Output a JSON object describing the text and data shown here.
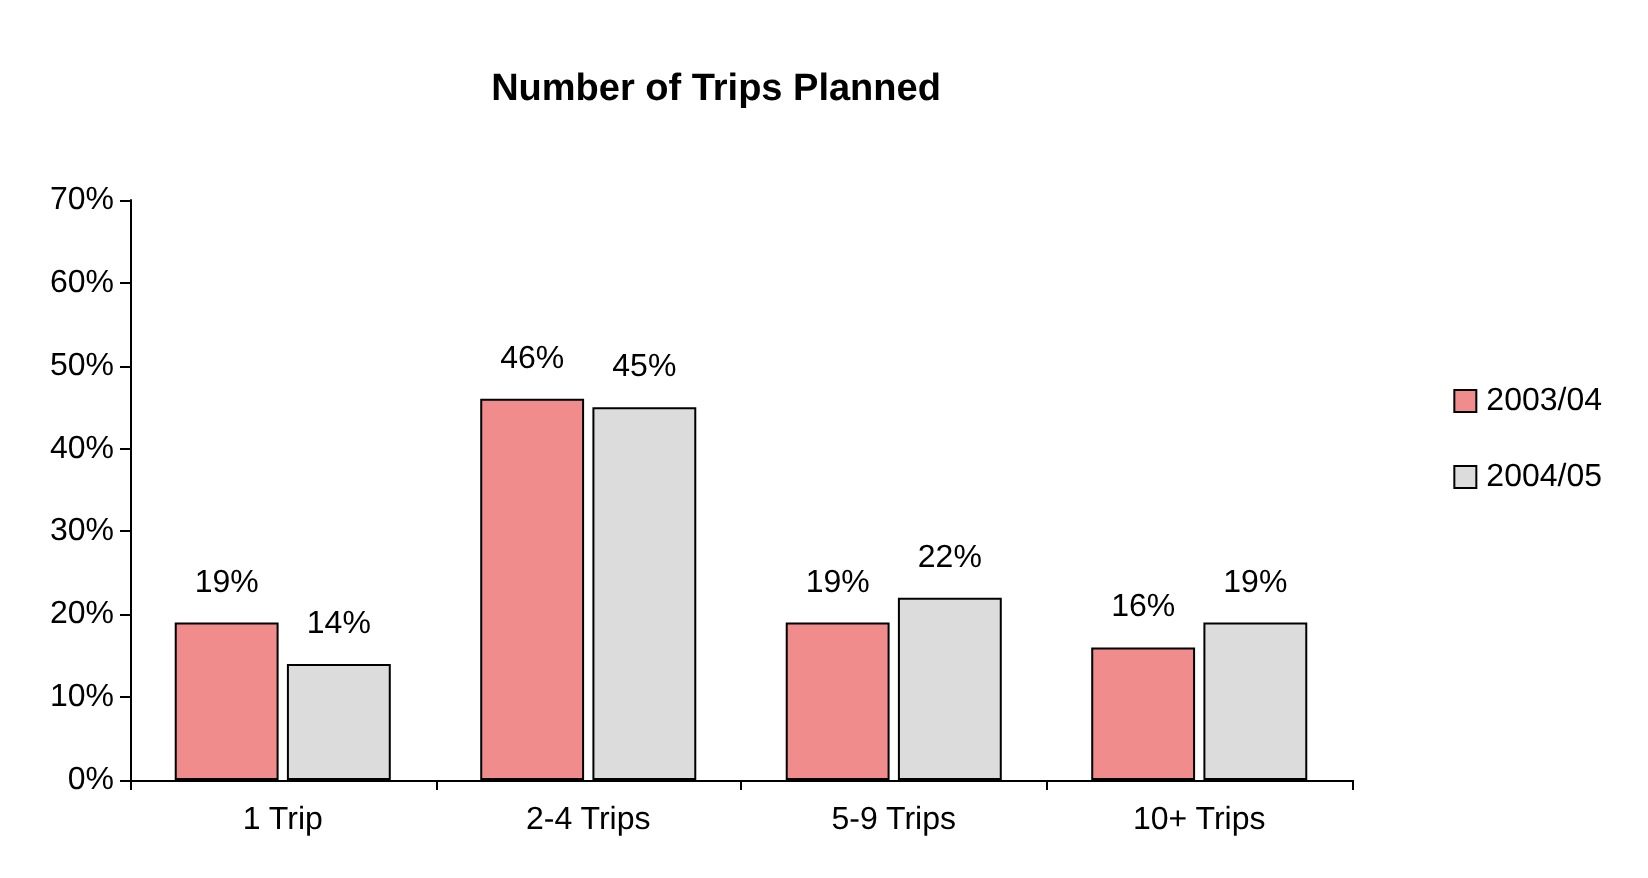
{
  "chart_data": {
    "type": "bar",
    "title": "Number of Trips Planned",
    "categories": [
      "1 Trip",
      "2-4 Trips",
      "5-9 Trips",
      "10+ Trips"
    ],
    "series": [
      {
        "name": "2003/04",
        "color": "#f08c8c",
        "values": [
          19,
          46,
          19,
          16
        ],
        "value_labels": [
          "19%",
          "46%",
          "19%",
          "16%"
        ]
      },
      {
        "name": "2004/05",
        "color": "#dcdcdc",
        "values": [
          14,
          45,
          22,
          19
        ],
        "value_labels": [
          "14%",
          "45%",
          "22%",
          "19%"
        ]
      }
    ],
    "ylim": [
      0,
      70
    ],
    "yticks": [
      {
        "value": 0,
        "label": "0%"
      },
      {
        "value": 10,
        "label": "10%"
      },
      {
        "value": 20,
        "label": "20%"
      },
      {
        "value": 30,
        "label": "30%"
      },
      {
        "value": 40,
        "label": "40%"
      },
      {
        "value": 50,
        "label": "50%"
      },
      {
        "value": 60,
        "label": "60%"
      },
      {
        "value": 70,
        "label": "70%"
      }
    ],
    "grid": false,
    "legend": "right"
  }
}
